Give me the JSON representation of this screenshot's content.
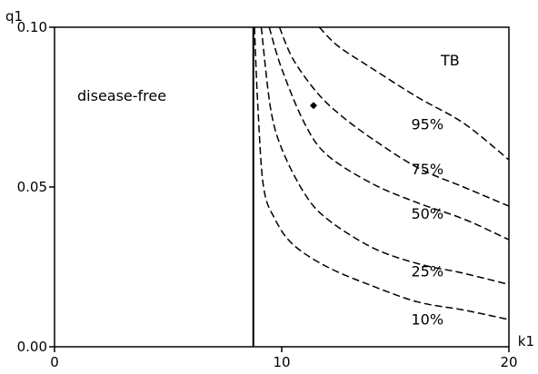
{
  "chart_data": {
    "type": "line",
    "title": "",
    "xlabel": "k1",
    "ylabel": "q1",
    "xlim": [
      0,
      20
    ],
    "ylim": [
      0,
      0.1
    ],
    "x_ticks": [
      {
        "value": 0,
        "label": "0"
      },
      {
        "value": 10,
        "label": "10"
      },
      {
        "value": 20,
        "label": "20"
      }
    ],
    "y_ticks": [
      {
        "value": 0,
        "label": "0.00"
      },
      {
        "value": 0.05,
        "label": "0.05"
      },
      {
        "value": 0.1,
        "label": "0.10"
      }
    ],
    "grid": false,
    "boundary": {
      "x": 8.75
    },
    "regions": [
      {
        "label": "disease-free",
        "x": 1.0,
        "y": 0.077
      },
      {
        "label": "TB",
        "x": 17.0,
        "y": 0.088
      }
    ],
    "series": [
      {
        "name": "95%",
        "style": "dashed",
        "points": [
          [
            11.65,
            0.1
          ],
          [
            12.5,
            0.094
          ],
          [
            14,
            0.087
          ],
          [
            16,
            0.078
          ],
          [
            18,
            0.07
          ],
          [
            20,
            0.0585
          ]
        ],
        "label_at": [
          15.7,
          0.068
        ]
      },
      {
        "name": "75%",
        "style": "dashed",
        "points": [
          [
            9.9,
            0.1
          ],
          [
            10.5,
            0.09
          ],
          [
            11.5,
            0.08
          ],
          [
            12.5,
            0.073
          ],
          [
            14,
            0.065
          ],
          [
            16,
            0.056
          ],
          [
            18,
            0.05
          ],
          [
            20,
            0.044
          ]
        ],
        "label_at": [
          15.7,
          0.054
        ]
      },
      {
        "name": "50%",
        "style": "dashed",
        "points": [
          [
            9.45,
            0.1
          ],
          [
            10,
            0.087
          ],
          [
            11,
            0.07
          ],
          [
            12,
            0.06
          ],
          [
            14,
            0.051
          ],
          [
            16,
            0.045
          ],
          [
            18,
            0.04
          ],
          [
            20,
            0.0335
          ]
        ],
        "label_at": [
          15.7,
          0.04
        ]
      },
      {
        "name": "25%",
        "style": "dashed",
        "points": [
          [
            9.1,
            0.1
          ],
          [
            9.5,
            0.075
          ],
          [
            10,
            0.062
          ],
          [
            11,
            0.048
          ],
          [
            12,
            0.04
          ],
          [
            14,
            0.031
          ],
          [
            16,
            0.026
          ],
          [
            18,
            0.023
          ],
          [
            20,
            0.0195
          ]
        ],
        "label_at": [
          15.7,
          0.022
        ]
      },
      {
        "name": "10%",
        "style": "dashed",
        "points": [
          [
            8.8,
            0.1
          ],
          [
            8.95,
            0.075
          ],
          [
            9.2,
            0.05
          ],
          [
            9.7,
            0.04
          ],
          [
            10.5,
            0.032
          ],
          [
            12,
            0.025
          ],
          [
            14,
            0.019
          ],
          [
            16,
            0.014
          ],
          [
            18,
            0.0115
          ],
          [
            20,
            0.0085
          ]
        ],
        "label_at": [
          15.7,
          0.007
        ]
      }
    ],
    "marker": {
      "x": 11.4,
      "y": 0.0755
    }
  }
}
